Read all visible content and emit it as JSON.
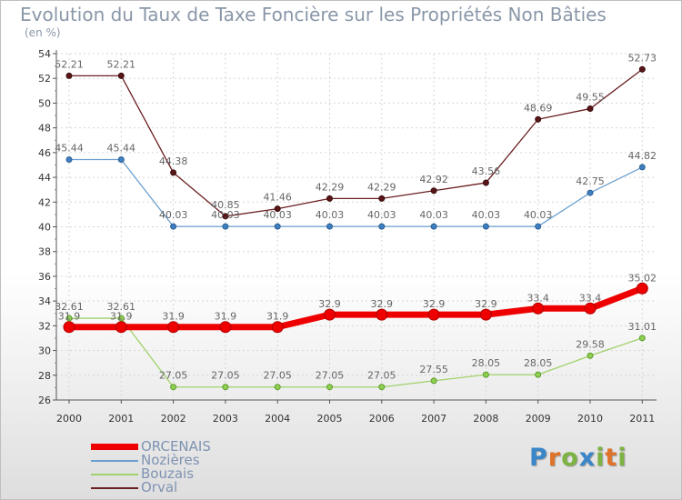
{
  "title": "Evolution du Taux de Taxe Foncière sur les Propriétés Non Bâties",
  "unit": "(en %)",
  "logo": {
    "text": "Proxiti",
    "colors": [
      "#3a86c8",
      "#e0732a",
      "#7cb342",
      "#3a86c8",
      "#7cb342",
      "#e0732a",
      "#7cb342"
    ]
  },
  "chart_data": {
    "type": "line",
    "title": "Evolution du Taux de Taxe Foncière sur les Propriétés Non Bâties",
    "ylabel": "(en %)",
    "xlabel": "",
    "categories": [
      "2000",
      "2001",
      "2002",
      "2003",
      "2004",
      "2005",
      "2006",
      "2007",
      "2008",
      "2009",
      "2010",
      "2011"
    ],
    "ylim": [
      26,
      54
    ],
    "yticks": [
      "26",
      "28",
      "30",
      "32",
      "34",
      "36",
      "38",
      "40",
      "42",
      "44",
      "46",
      "48",
      "50",
      "52",
      "54"
    ],
    "grid": true,
    "legend_position": "bottom-left",
    "series": [
      {
        "name": "Orval",
        "color": "#6b1f22",
        "values": [
          52.21,
          52.21,
          44.38,
          40.85,
          41.46,
          42.29,
          42.29,
          42.92,
          43.56,
          48.69,
          49.55,
          52.73
        ],
        "labels": [
          "52.21",
          "52.21",
          "44.38",
          "40.85",
          "41.46",
          "42.29",
          "42.29",
          "42.92",
          "43.56",
          "48.69",
          "49.55",
          "52.73"
        ]
      },
      {
        "name": "Nozières",
        "color": "#6a9fcf",
        "values": [
          45.44,
          45.44,
          40.03,
          40.03,
          40.03,
          40.03,
          40.03,
          40.03,
          40.03,
          40.03,
          42.75,
          44.82
        ],
        "labels": [
          "45.44",
          "45.44",
          "40.03",
          "40.03",
          "40.03",
          "40.03",
          "40.03",
          "40.03",
          "40.03",
          "40.03",
          "42.75",
          "44.82"
        ]
      },
      {
        "name": "Bouzais",
        "color": "#9fd26a",
        "values": [
          32.61,
          32.61,
          27.05,
          27.05,
          27.05,
          27.05,
          27.05,
          27.55,
          28.05,
          28.05,
          29.58,
          31.01
        ],
        "labels": [
          "32.61",
          "32.61",
          "27.05",
          "27.05",
          "27.05",
          "27.05",
          "27.05",
          "27.55",
          "28.05",
          "28.05",
          "29.58",
          "31.01"
        ]
      },
      {
        "name": "ORCENAIS",
        "color": "#ee0000",
        "values": [
          31.9,
          31.9,
          31.9,
          31.9,
          31.9,
          32.9,
          32.9,
          32.9,
          32.9,
          33.4,
          33.4,
          35.02
        ],
        "labels": [
          "31.9",
          "31.9",
          "31.9",
          "31.9",
          "31.9",
          "32.9",
          "32.9",
          "32.9",
          "32.9",
          "33.4",
          "33.4",
          "35.02"
        ]
      }
    ],
    "legend": [
      {
        "name": "ORCENAIS",
        "color": "#ee0000"
      },
      {
        "name": "Nozières",
        "color": "#6a9fcf"
      },
      {
        "name": "Bouzais",
        "color": "#9fd26a"
      },
      {
        "name": "Orval",
        "color": "#6b1f22"
      }
    ]
  }
}
